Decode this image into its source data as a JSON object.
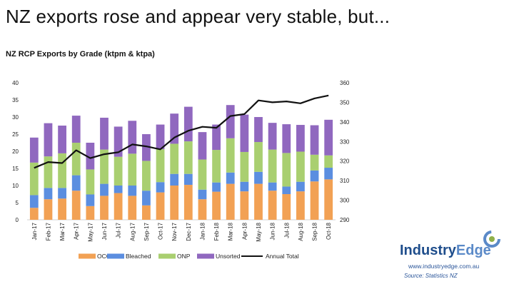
{
  "title": "NZ exports rose and appear very stable, but...",
  "chart_data": {
    "type": "bar",
    "title": "NZ RCP Exports by Grade (ktpm & ktpa)",
    "xlabel": "",
    "ylabel": "",
    "categories": [
      "Jan-17",
      "Feb-17",
      "Mar-17",
      "Apr-17",
      "May-17",
      "Jun-17",
      "Jul-17",
      "Aug-17",
      "Sep-17",
      "Oct-17",
      "Nov-17",
      "Dec-17",
      "Jan-18",
      "Feb-18",
      "Mar-18",
      "Apr-18",
      "May-18",
      "Jun-18",
      "Jul-18",
      "Aug-18",
      "Sep-18",
      "Oct-18"
    ],
    "ylim": [
      0,
      40
    ],
    "yticks": [
      "0",
      "5",
      "10",
      "15",
      "20",
      "25",
      "30",
      "35",
      "40"
    ],
    "y2lim": [
      290,
      360
    ],
    "y2ticks": [
      "290",
      "300",
      "310",
      "320",
      "330",
      "340",
      "350",
      "360"
    ],
    "stacked": true,
    "series": [
      {
        "name": "OCC",
        "color": "#f2a154",
        "values": [
          3.5,
          6.0,
          6.2,
          8.5,
          4.0,
          7.0,
          7.8,
          7.0,
          4.2,
          8.0,
          10.0,
          10.2,
          6.0,
          8.2,
          10.5,
          8.3,
          10.5,
          8.5,
          7.5,
          8.3,
          11.2,
          11.8
        ]
      },
      {
        "name": "Bleached",
        "color": "#5b8ee0",
        "values": [
          3.7,
          3.3,
          3.1,
          4.5,
          3.4,
          3.5,
          2.2,
          3.0,
          4.3,
          3.0,
          3.4,
          3.2,
          2.8,
          2.7,
          3.3,
          2.8,
          3.5,
          2.4,
          2.2,
          2.8,
          3.2,
          3.4
        ]
      },
      {
        "name": "ONP",
        "color": "#a9cf70",
        "values": [
          9.5,
          9.2,
          10.1,
          9.5,
          7.3,
          10.0,
          8.4,
          9.3,
          8.7,
          9.6,
          8.8,
          9.5,
          8.8,
          9.5,
          10.0,
          8.7,
          8.7,
          9.6,
          9.8,
          8.8,
          4.6,
          3.6
        ]
      },
      {
        "name": "Unsorted",
        "color": "#9068bf",
        "values": [
          7.3,
          9.7,
          8.1,
          7.9,
          7.8,
          9.3,
          8.8,
          9.6,
          7.8,
          7.2,
          8.8,
          10.1,
          8.0,
          7.4,
          9.7,
          10.9,
          7.3,
          7.8,
          8.4,
          7.8,
          8.6,
          10.4
        ]
      },
      {
        "name": "Annual Total",
        "color": "#111111",
        "type": "line",
        "axis": "secondary",
        "values": [
          316.5,
          319.5,
          319.0,
          325.5,
          321.5,
          323.5,
          324.5,
          328.5,
          327.5,
          326.0,
          332.0,
          335.5,
          337.5,
          337.0,
          343.0,
          344.0,
          351.0,
          350.0,
          350.5,
          349.5,
          352.0,
          353.5
        ]
      }
    ],
    "legend_position": "bottom",
    "grid": false
  },
  "brand": {
    "part1": "Industry",
    "part2": "Edge"
  },
  "website": "www.industryedge.com.au",
  "source": "Source: Statistics NZ",
  "colors": {
    "axis": "#d0d0d0",
    "brand": "#1f4e8c"
  }
}
